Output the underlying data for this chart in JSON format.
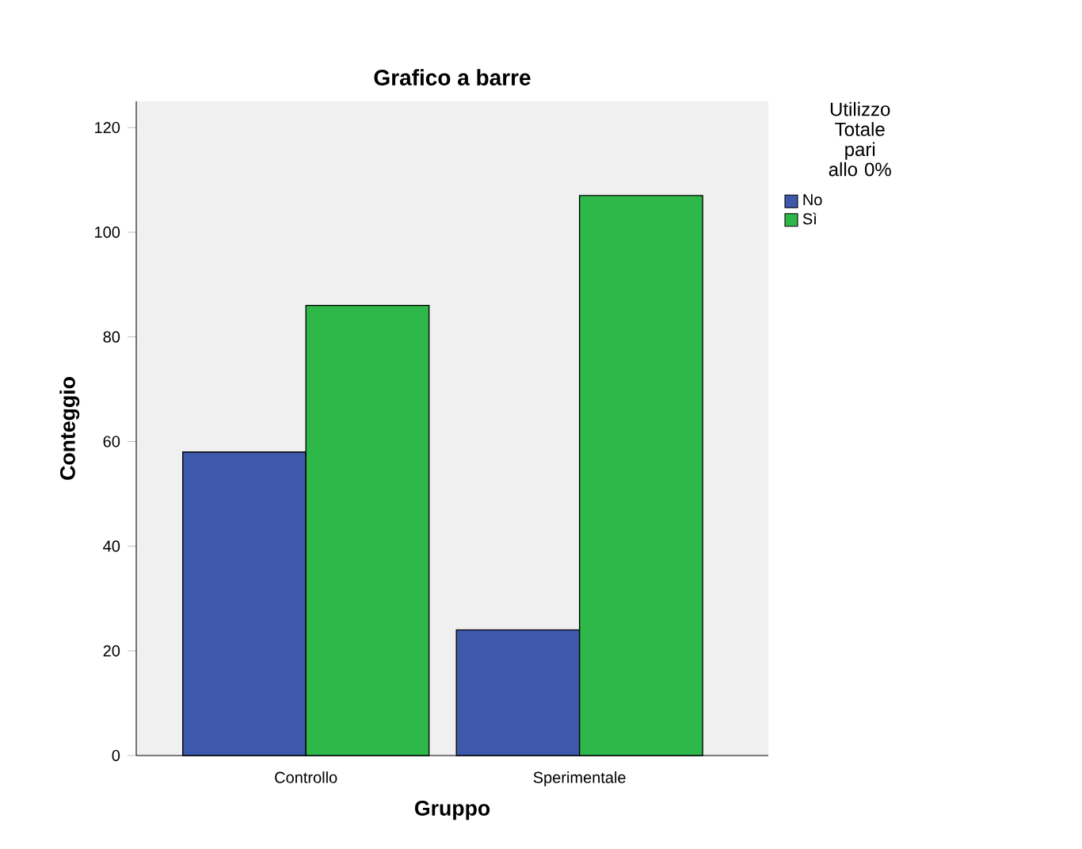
{
  "chart_data": {
    "type": "bar",
    "title": "Grafico a barre",
    "xlabel": "Gruppo",
    "ylabel": "Conteggio",
    "legend_title": "Utilizzo Totale pari allo 0%",
    "categories": [
      "Controllo",
      "Sperimentale"
    ],
    "series": [
      {
        "name": "No",
        "color": "#3e58ac",
        "values": [
          58,
          24
        ]
      },
      {
        "name": "Sì",
        "color": "#2eb84a",
        "values": [
          86,
          107
        ]
      }
    ],
    "ylim": [
      0,
      125
    ],
    "yticks": [
      0,
      20,
      40,
      60,
      80,
      100,
      120
    ],
    "grid": false,
    "legend": "top right"
  }
}
